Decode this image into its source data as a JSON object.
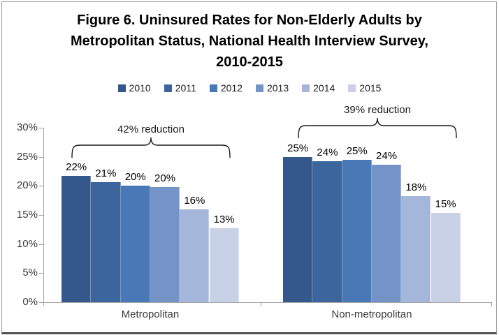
{
  "figure": {
    "title_lines": [
      "Figure 6. Uninsured Rates for Non-Elderly Adults by",
      "Metropolitan Status, National Health Interview Survey,",
      "2010-2015"
    ]
  },
  "chart_data": {
    "type": "bar",
    "title": "Figure 6. Uninsured Rates for Non-Elderly Adults by Metropolitan Status, National Health Interview Survey, 2010-2015",
    "categories": [
      "Metropolitan",
      "Non-metropolitan"
    ],
    "xlabel": "",
    "ylabel": "",
    "ylim": [
      0,
      30
    ],
    "ytick_labels": [
      "0%",
      "5%",
      "10%",
      "15%",
      "20%",
      "25%",
      "30%"
    ],
    "grid": false,
    "legend_position": "top",
    "bar_label_suffix": "%",
    "series": [
      {
        "name": "2010",
        "color": "#35588C",
        "values": [
          22,
          25
        ],
        "plot_values": [
          21.7,
          25.0
        ]
      },
      {
        "name": "2011",
        "color": "#3C659E",
        "values": [
          21,
          24
        ],
        "plot_values": [
          20.6,
          24.2
        ]
      },
      {
        "name": "2012",
        "color": "#4878B6",
        "values": [
          20,
          25
        ],
        "plot_values": [
          20.1,
          24.5
        ]
      },
      {
        "name": "2013",
        "color": "#7493C6",
        "values": [
          20,
          24
        ],
        "plot_values": [
          19.8,
          23.7
        ]
      },
      {
        "name": "2014",
        "color": "#A4B6D9",
        "values": [
          16,
          18
        ],
        "plot_values": [
          16.0,
          18.3
        ]
      },
      {
        "name": "2015",
        "color": "#C8D1E6",
        "values": [
          13,
          15
        ],
        "plot_values": [
          12.7,
          15.4
        ]
      }
    ],
    "annotations": [
      {
        "text": "42% reduction",
        "category": "Metropolitan"
      },
      {
        "text": "39% reduction",
        "category": "Non-metropolitan"
      }
    ]
  },
  "colors": {
    "axis": "#9c9c9c",
    "frame_border": "#9b9b9b",
    "frame_bottom": "#515151",
    "annotation": "#1a1a1a"
  }
}
